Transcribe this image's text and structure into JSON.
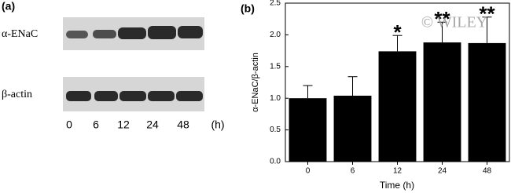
{
  "blot": {
    "label": "(a)",
    "rows": [
      "α-ENaC",
      "β-actin"
    ],
    "lanes": [
      "0",
      "6",
      "12",
      "24",
      "48"
    ],
    "unit": "(h)"
  },
  "watermark": "© WILEY",
  "chart_data": {
    "type": "bar",
    "label": "(b)",
    "ylabel": "α-ENaC/β-actin",
    "xlabel": "Time (h)",
    "categories": [
      "0",
      "6",
      "12",
      "24",
      "48"
    ],
    "values": [
      1.0,
      1.04,
      1.74,
      1.88,
      1.87
    ],
    "errors": [
      0.2,
      0.3,
      0.25,
      0.32,
      0.41
    ],
    "significance": [
      null,
      null,
      "*",
      "**",
      "**"
    ],
    "color": "#000000",
    "ylim": [
      0,
      2.5
    ],
    "yticks": [
      {
        "value": 0,
        "label": "0.0"
      },
      0.5,
      {
        "value": 1,
        "label": "1.0"
      },
      1.5,
      {
        "value": 2,
        "label": "2.0"
      },
      2.5
    ]
  }
}
